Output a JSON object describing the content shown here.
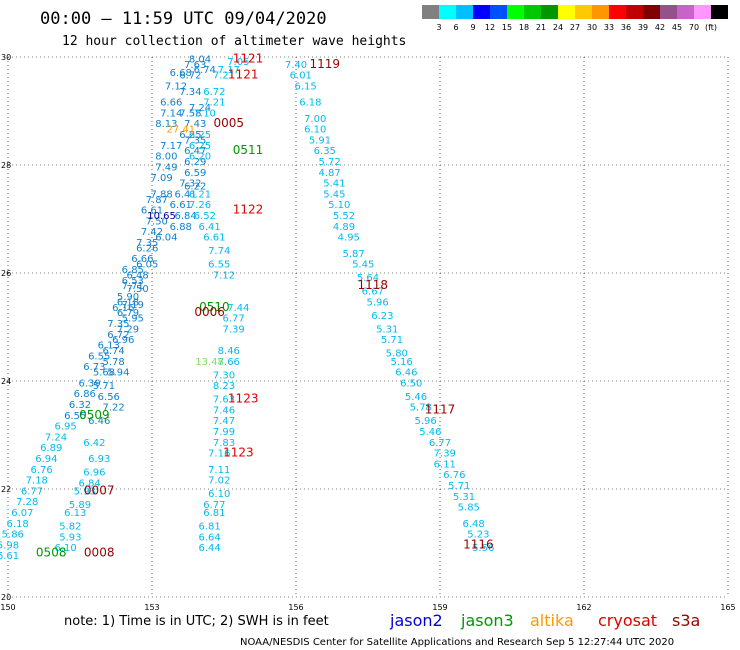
{
  "header": {
    "title": "00:00 – 11:59 UTC 09/04/2020",
    "subtitle": "12 hour collection of altimeter wave heights"
  },
  "colorbar": {
    "colors": [
      "#808080",
      "#00ffff",
      "#00c0ff",
      "#0000ff",
      "#0050ff",
      "#00ff00",
      "#00c800",
      "#009600",
      "#ffff00",
      "#ffc800",
      "#ff9600",
      "#ff0000",
      "#c00000",
      "#800000",
      "#96508c",
      "#c864c8",
      "#ff96ff",
      "#000000"
    ],
    "labels": [
      "3",
      "6",
      "9",
      "12",
      "15",
      "18",
      "21",
      "24",
      "27",
      "30",
      "33",
      "36",
      "39",
      "42",
      "45",
      "70",
      "(ft)"
    ]
  },
  "satellites": [
    {
      "name": "jason2",
      "color": "#0000dd"
    },
    {
      "name": "jason3",
      "color": "#009900"
    },
    {
      "name": "altika",
      "color": "#ff9900"
    },
    {
      "name": "cryosat",
      "color": "#dd0000"
    },
    {
      "name": "s3a",
      "color": "#990000"
    }
  ],
  "footer": {
    "note": "note: 1) Time is in UTC; 2) SWH is in feet",
    "credit": "NOAA/NESDIS Center for Satellite Applications and Research   Sep  5 12:27:44 UTC 2020"
  },
  "chart_data": {
    "type": "scatter",
    "xlim": [
      150,
      165
    ],
    "ylim": [
      20,
      30
    ],
    "xticks": [
      "150",
      "153",
      "156",
      "159",
      "162",
      "165"
    ],
    "yticks": [
      "20",
      "22",
      "24",
      "26",
      "28",
      "30"
    ],
    "grid": true,
    "point_colors": {
      "c": "#00bbee",
      "b": "#1080cc",
      "d": "#000090",
      "g": "#80e060",
      "o": "#ff9900"
    },
    "points": [
      [
        154.0,
        29.9,
        "8.04",
        "b"
      ],
      [
        154.8,
        29.85,
        "7.05",
        "c"
      ],
      [
        156.0,
        29.8,
        "7.40",
        "c"
      ],
      [
        153.9,
        29.8,
        "7.63",
        "b"
      ],
      [
        154.1,
        29.7,
        "6.74",
        "b"
      ],
      [
        154.6,
        29.7,
        "7.17",
        "c"
      ],
      [
        153.6,
        29.65,
        "6.68",
        "b"
      ],
      [
        153.8,
        29.6,
        "6.72",
        "b"
      ],
      [
        154.5,
        29.6,
        "7.21",
        "c"
      ],
      [
        156.1,
        29.6,
        "6.01",
        "c"
      ],
      [
        153.5,
        29.4,
        "7.12",
        "b"
      ],
      [
        153.8,
        29.3,
        "7.34",
        "b"
      ],
      [
        154.3,
        29.3,
        "6.72",
        "c"
      ],
      [
        156.2,
        29.4,
        "6.15",
        "c"
      ],
      [
        153.4,
        29.1,
        "6.66",
        "b"
      ],
      [
        154.0,
        29.0,
        "7.24",
        "b"
      ],
      [
        154.3,
        29.1,
        "7.21",
        "c"
      ],
      [
        156.3,
        29.1,
        "6.18",
        "c"
      ],
      [
        153.4,
        28.9,
        "7.14",
        "b"
      ],
      [
        153.8,
        28.9,
        "7.58",
        "b"
      ],
      [
        154.1,
        28.9,
        "7.10",
        "c"
      ],
      [
        156.4,
        28.8,
        "7.00",
        "c"
      ],
      [
        153.3,
        28.7,
        "8.13",
        "b"
      ],
      [
        153.9,
        28.7,
        "7.43",
        "b"
      ],
      [
        156.4,
        28.6,
        "6.10",
        "c"
      ],
      [
        153.8,
        28.5,
        "6.25",
        "b"
      ],
      [
        154.0,
        28.5,
        "6.25",
        "c"
      ],
      [
        156.5,
        28.4,
        "5.91",
        "c"
      ],
      [
        153.4,
        28.3,
        "7.17",
        "b"
      ],
      [
        153.9,
        28.4,
        "7.35",
        "b"
      ],
      [
        154.0,
        28.3,
        "6.25",
        "c"
      ],
      [
        153.9,
        28.2,
        "6.47",
        "b"
      ],
      [
        154.0,
        28.1,
        "6.20",
        "c"
      ],
      [
        156.6,
        28.2,
        "6.35",
        "c"
      ],
      [
        153.3,
        28.1,
        "8.00",
        "b"
      ],
      [
        153.9,
        28.0,
        "6.29",
        "b"
      ],
      [
        156.7,
        28.0,
        "5.72",
        "c"
      ],
      [
        153.3,
        27.9,
        "7.49",
        "b"
      ],
      [
        153.9,
        27.8,
        "6.59",
        "b"
      ],
      [
        156.7,
        27.8,
        "4.87",
        "c"
      ],
      [
        153.2,
        27.7,
        "7.09",
        "b"
      ],
      [
        153.8,
        27.6,
        "7.32",
        "b"
      ],
      [
        153.9,
        27.55,
        "6.22",
        "b"
      ],
      [
        156.8,
        27.6,
        "5.41",
        "c"
      ],
      [
        153.2,
        27.4,
        "7.88",
        "b"
      ],
      [
        153.7,
        27.4,
        "6.41",
        "b"
      ],
      [
        154.0,
        27.4,
        "6.21",
        "c"
      ],
      [
        156.8,
        27.4,
        "5.45",
        "c"
      ],
      [
        153.1,
        27.3,
        "7.87",
        "b"
      ],
      [
        153.6,
        27.2,
        "6.61",
        "b"
      ],
      [
        154.0,
        27.2,
        "7.26",
        "c"
      ],
      [
        156.9,
        27.2,
        "5.10",
        "c"
      ],
      [
        153.0,
        27.1,
        "6.61",
        "b"
      ],
      [
        153.7,
        27.0,
        "6.84",
        "b"
      ],
      [
        154.1,
        27.0,
        "6.52",
        "c"
      ],
      [
        157.0,
        27.0,
        "5.52",
        "c"
      ],
      [
        153.1,
        26.9,
        "7.50",
        "b"
      ],
      [
        153.6,
        26.8,
        "6.88",
        "b"
      ],
      [
        154.2,
        26.8,
        "6.41",
        "c"
      ],
      [
        157.0,
        26.8,
        "4.89",
        "c"
      ],
      [
        153.0,
        26.7,
        "7.42",
        "b"
      ],
      [
        153.3,
        26.6,
        "6.04",
        "b"
      ],
      [
        154.3,
        26.6,
        "6.61",
        "c"
      ],
      [
        157.1,
        26.6,
        "4.95",
        "c"
      ],
      [
        152.9,
        26.5,
        "7.35",
        "b"
      ],
      [
        152.9,
        26.4,
        "6.26",
        "b"
      ],
      [
        154.4,
        26.35,
        "7.74",
        "c"
      ],
      [
        157.2,
        26.3,
        "5.87",
        "c"
      ],
      [
        152.8,
        26.2,
        "6.66",
        "b"
      ],
      [
        152.9,
        26.1,
        "6.05",
        "b"
      ],
      [
        154.4,
        26.1,
        "6.55",
        "c"
      ],
      [
        157.4,
        26.1,
        "5.45",
        "c"
      ],
      [
        152.6,
        26.0,
        "6.85",
        "b"
      ],
      [
        152.7,
        25.9,
        "6.48",
        "b"
      ],
      [
        154.5,
        25.9,
        "7.12",
        "c"
      ],
      [
        157.5,
        25.85,
        "5.64",
        "c"
      ],
      [
        152.6,
        25.8,
        "6.53",
        "b"
      ],
      [
        152.6,
        25.7,
        "7.71",
        "b"
      ],
      [
        152.7,
        25.65,
        "7.50",
        "b"
      ],
      [
        157.6,
        25.6,
        "6.67",
        "c"
      ],
      [
        152.5,
        25.5,
        "5.90",
        "b"
      ],
      [
        152.5,
        25.4,
        "6.18",
        "b"
      ],
      [
        152.6,
        25.35,
        "7.19",
        "b"
      ],
      [
        154.8,
        25.3,
        "7.44",
        "c"
      ],
      [
        157.7,
        25.4,
        "5.96",
        "c"
      ],
      [
        152.4,
        25.3,
        "6.16",
        "b"
      ],
      [
        152.5,
        25.2,
        "6.79",
        "b"
      ],
      [
        152.6,
        25.1,
        "5.95",
        "b"
      ],
      [
        154.7,
        25.1,
        "6.77",
        "c"
      ],
      [
        157.8,
        25.15,
        "6.23",
        "c"
      ],
      [
        152.3,
        25.0,
        "7.35",
        "b"
      ],
      [
        152.5,
        24.9,
        "7.29",
        "b"
      ],
      [
        154.7,
        24.9,
        "7.39",
        "c"
      ],
      [
        157.9,
        24.9,
        "5.31",
        "c"
      ],
      [
        152.3,
        24.8,
        "6.72",
        "b"
      ],
      [
        152.4,
        24.7,
        "6.96",
        "b"
      ],
      [
        158.0,
        24.7,
        "5.71",
        "c"
      ],
      [
        152.1,
        24.6,
        "6.13",
        "b"
      ],
      [
        152.2,
        24.5,
        "6.74",
        "b"
      ],
      [
        154.6,
        24.5,
        "8.46",
        "c"
      ],
      [
        158.1,
        24.45,
        "5.80",
        "c"
      ],
      [
        151.9,
        24.4,
        "6.55",
        "b"
      ],
      [
        152.2,
        24.3,
        "5.78",
        "b"
      ],
      [
        154.6,
        24.3,
        "7.66",
        "c"
      ],
      [
        158.2,
        24.3,
        "5.16",
        "c"
      ],
      [
        151.8,
        24.2,
        "6.73",
        "b"
      ],
      [
        152.0,
        24.1,
        "5.68",
        "b"
      ],
      [
        152.3,
        24.1,
        "5.94",
        "b"
      ],
      [
        154.5,
        24.05,
        "7.30",
        "c"
      ],
      [
        158.3,
        24.1,
        "6.46",
        "c"
      ],
      [
        151.7,
        23.9,
        "6.39",
        "b"
      ],
      [
        152.0,
        23.85,
        "5.71",
        "b"
      ],
      [
        154.5,
        23.85,
        "8.23",
        "c"
      ],
      [
        158.4,
        23.9,
        "6.50",
        "c"
      ],
      [
        151.6,
        23.7,
        "6.86",
        "b"
      ],
      [
        152.1,
        23.65,
        "6.56",
        "b"
      ],
      [
        154.5,
        23.6,
        "7.63",
        "c"
      ],
      [
        158.5,
        23.65,
        "5.46",
        "c"
      ],
      [
        151.5,
        23.5,
        "6.32",
        "b"
      ],
      [
        152.2,
        23.45,
        "7.22",
        "b"
      ],
      [
        154.5,
        23.4,
        "7.46",
        "c"
      ],
      [
        158.6,
        23.45,
        "5.78",
        "c"
      ],
      [
        151.4,
        23.3,
        "6.55",
        "b"
      ],
      [
        151.9,
        23.2,
        "6.46",
        "b"
      ],
      [
        154.5,
        23.2,
        "7.47",
        "c"
      ],
      [
        158.7,
        23.2,
        "5.96",
        "c"
      ],
      [
        151.2,
        23.1,
        "6.95",
        "c"
      ],
      [
        154.5,
        23.0,
        "7.99",
        "c"
      ],
      [
        158.8,
        23.0,
        "5.46",
        "c"
      ],
      [
        151.0,
        22.9,
        "7.24",
        "c"
      ],
      [
        151.8,
        22.8,
        "6.42",
        "c"
      ],
      [
        154.5,
        22.8,
        "7.83",
        "c"
      ],
      [
        159.0,
        22.8,
        "6.77",
        "c"
      ],
      [
        150.9,
        22.7,
        "6.89",
        "c"
      ],
      [
        154.4,
        22.6,
        "7.16",
        "c"
      ],
      [
        159.1,
        22.6,
        "7.39",
        "c"
      ],
      [
        150.8,
        22.5,
        "6.94",
        "c"
      ],
      [
        151.9,
        22.5,
        "6.93",
        "c"
      ],
      [
        159.1,
        22.4,
        "6.11",
        "c"
      ],
      [
        150.7,
        22.3,
        "6.76",
        "c"
      ],
      [
        151.8,
        22.25,
        "6.96",
        "c"
      ],
      [
        154.4,
        22.3,
        "7.11",
        "c"
      ],
      [
        159.3,
        22.2,
        "6.76",
        "c"
      ],
      [
        150.6,
        22.1,
        "7.18",
        "c"
      ],
      [
        151.7,
        22.05,
        "6.84",
        "c"
      ],
      [
        154.4,
        22.1,
        "7.02",
        "c"
      ],
      [
        159.4,
        22.0,
        "5.71",
        "c"
      ],
      [
        150.5,
        21.9,
        "6.77",
        "c"
      ],
      [
        151.6,
        21.9,
        "5.93",
        "c"
      ],
      [
        154.4,
        21.85,
        "6.10",
        "c"
      ],
      [
        159.5,
        21.8,
        "5.31",
        "c"
      ],
      [
        150.4,
        21.7,
        "7.28",
        "c"
      ],
      [
        151.5,
        21.65,
        "5.89",
        "c"
      ],
      [
        154.3,
        21.65,
        "6.77",
        "c"
      ],
      [
        159.6,
        21.6,
        "5.85",
        "c"
      ],
      [
        150.3,
        21.5,
        "6.07",
        "c"
      ],
      [
        151.4,
        21.5,
        "6.13",
        "c"
      ],
      [
        154.3,
        21.5,
        "6.81",
        "c"
      ],
      [
        159.7,
        21.3,
        "6.48",
        "c"
      ],
      [
        150.2,
        21.3,
        "6.18",
        "c"
      ],
      [
        151.3,
        21.25,
        "5.82",
        "c"
      ],
      [
        154.2,
        21.25,
        "6.81",
        "c"
      ],
      [
        159.8,
        21.1,
        "5.23",
        "c"
      ],
      [
        150.1,
        21.1,
        "5.86",
        "c"
      ],
      [
        151.3,
        21.05,
        "5.93",
        "c"
      ],
      [
        154.2,
        21.05,
        "6.64",
        "c"
      ],
      [
        159.9,
        20.85,
        "5.56",
        "c"
      ],
      [
        150.0,
        20.9,
        "5.98",
        "c"
      ],
      [
        151.2,
        20.85,
        "6.10",
        "c"
      ],
      [
        154.2,
        20.85,
        "6.44",
        "c"
      ],
      [
        150.0,
        20.7,
        "6.61",
        "c"
      ],
      [
        153.2,
        27.0,
        "10.65",
        "d"
      ],
      [
        153.6,
        28.6,
        "27.41",
        "o"
      ],
      [
        154.2,
        24.3,
        "13.48",
        "g"
      ]
    ],
    "time_labels": [
      [
        155.0,
        29.9,
        "1121",
        "#dd0000"
      ],
      [
        156.6,
        29.8,
        "1119",
        "#990000"
      ],
      [
        154.9,
        29.6,
        "1121",
        "#dd0000"
      ],
      [
        154.6,
        28.7,
        "0005",
        "#990000"
      ],
      [
        155.0,
        28.2,
        "0511",
        "#009900"
      ],
      [
        155.0,
        27.1,
        "1122",
        "#dd0000"
      ],
      [
        157.6,
        25.7,
        "1118",
        "#990000"
      ],
      [
        154.3,
        25.3,
        "0510",
        "#009900"
      ],
      [
        154.2,
        25.2,
        "0006",
        "#990000"
      ],
      [
        154.9,
        23.6,
        "1123",
        "#dd0000"
      ],
      [
        159.0,
        23.4,
        "1117",
        "#990000"
      ],
      [
        151.8,
        23.3,
        "0509",
        "#009900"
      ],
      [
        154.8,
        22.6,
        "1123",
        "#dd0000"
      ],
      [
        151.9,
        21.9,
        "0007",
        "#990000"
      ],
      [
        151.9,
        20.75,
        "0008",
        "#990000"
      ],
      [
        150.9,
        20.75,
        "0508",
        "#009900"
      ],
      [
        159.8,
        20.9,
        "1116",
        "#990000"
      ]
    ]
  }
}
